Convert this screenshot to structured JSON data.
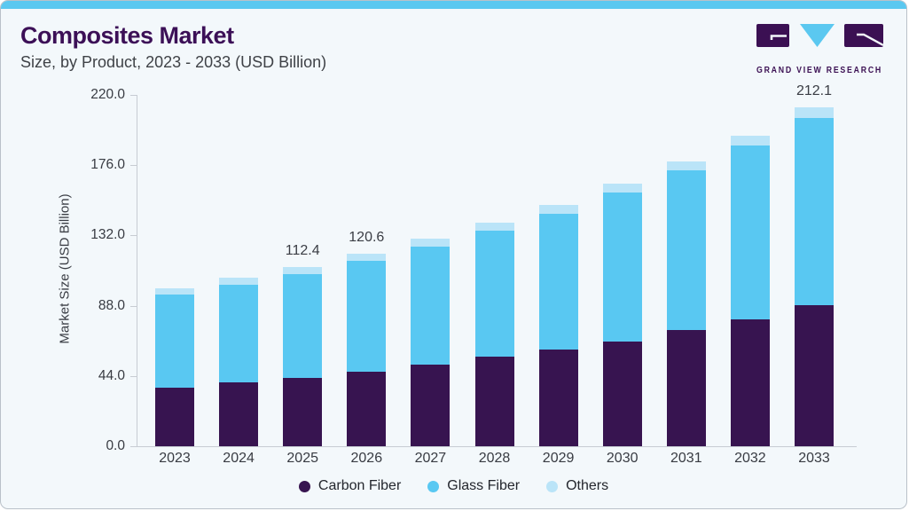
{
  "header": {
    "title": "Composites Market",
    "subtitle": "Size, by Product, 2023 - 2033 (USD Billion)"
  },
  "logo": {
    "text": "GRAND VIEW RESEARCH",
    "purple": "#3b1053",
    "cyan": "#5bc8f0"
  },
  "colors": {
    "accent_cyan": "#5bc8f0",
    "brand_purple": "#3c1057",
    "card_background": "#f3f8fb",
    "axis_line": "#c7ccd3"
  },
  "chart_data": {
    "type": "bar",
    "stacked": true,
    "title": "Composites Market Size, by Product, 2023 - 2033 (USD Billion)",
    "xlabel": "",
    "ylabel": "Market Size (USD Billion)",
    "ylim": [
      0,
      220
    ],
    "grid": false,
    "legend_position": "bottom",
    "yticks": [
      0,
      44,
      88,
      132,
      176,
      220
    ],
    "ytick_labels": [
      "0.0",
      "44.0",
      "88.0",
      "132.0",
      "176.0",
      "220.0"
    ],
    "categories": [
      "2023",
      "2024",
      "2025",
      "2026",
      "2027",
      "2028",
      "2029",
      "2030",
      "2031",
      "2032",
      "2033"
    ],
    "series": [
      {
        "name": "Carbon Fiber",
        "color": "#371450",
        "values": [
          36.6,
          39.9,
          42.8,
          46.9,
          51.2,
          56.3,
          60.6,
          65.8,
          73.0,
          79.5,
          88.5
        ]
      },
      {
        "name": "Glass Fiber",
        "color": "#59c8f2",
        "values": [
          58.6,
          61.3,
          65.2,
          69.0,
          73.6,
          78.7,
          85.0,
          92.9,
          99.8,
          109.1,
          117.3
        ]
      },
      {
        "name": "Others",
        "color": "#bae4f8",
        "values": [
          3.8,
          4.1,
          4.4,
          4.7,
          5.0,
          5.2,
          5.4,
          5.6,
          5.8,
          6.0,
          6.3
        ]
      }
    ],
    "totals": [
      99.0,
      105.3,
      112.4,
      120.6,
      129.8,
      140.2,
      151.0,
      164.3,
      178.6,
      194.6,
      212.1
    ],
    "bar_value_labels": [
      "",
      "",
      "112.4",
      "120.6",
      "",
      "",
      "",
      "",
      "",
      "",
      "212.1"
    ]
  }
}
